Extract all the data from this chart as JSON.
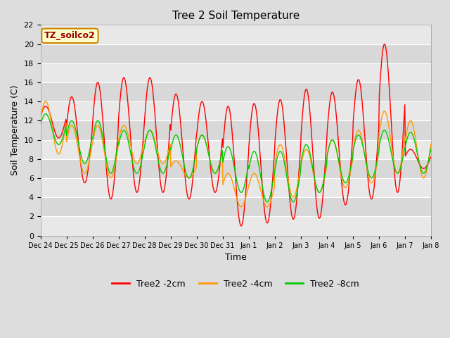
{
  "title": "Tree 2 Soil Temperature",
  "xlabel": "Time",
  "ylabel": "Soil Temperature (C)",
  "ylim": [
    0,
    22
  ],
  "yticks": [
    0,
    2,
    4,
    6,
    8,
    10,
    12,
    14,
    16,
    18,
    20,
    22
  ],
  "annotation_text": "TZ_soilco2",
  "annotation_bg": "#ffffcc",
  "annotation_border": "#cc8800",
  "annotation_text_color": "#990000",
  "line_colors": {
    "2cm": "#ff0000",
    "4cm": "#ff9900",
    "8cm": "#00cc00"
  },
  "legend_labels": [
    "Tree2 -2cm",
    "Tree2 -4cm",
    "Tree2 -8cm"
  ],
  "x_tick_labels": [
    "Dec 24",
    "Dec 25",
    "Dec 26",
    "Dec 27",
    "Dec 28",
    "Dec 29",
    "Dec 30",
    "Dec 31",
    "Jan 1",
    "Jan 2",
    "Jan 3",
    "Jan 4",
    "Jan 5",
    "Jan 6",
    "Jan 7",
    "Jan 8"
  ],
  "fig_bg": "#dddddd",
  "plot_bg": "#eeeeee",
  "band_colors": [
    "#e8e8e8",
    "#d8d8d8"
  ],
  "grid_color": "#ffffff",
  "peaks_2cm": [
    13.5,
    14.5,
    16.0,
    16.5,
    16.5,
    14.8,
    14.0,
    13.5,
    13.8,
    14.2,
    15.3,
    15.0,
    16.3,
    20.0,
    9.0
  ],
  "troughs_2cm": [
    10.2,
    5.5,
    3.8,
    4.5,
    4.5,
    3.8,
    4.5,
    1.0,
    1.3,
    1.7,
    1.8,
    3.2,
    3.8,
    4.5,
    7.0
  ],
  "peaks_4cm": [
    14.0,
    11.5,
    11.5,
    11.5,
    11.0,
    7.8,
    10.5,
    6.5,
    6.5,
    9.5,
    9.0,
    10.0,
    11.0,
    13.0,
    12.0
  ],
  "troughs_4cm": [
    8.5,
    6.5,
    6.0,
    7.5,
    7.5,
    6.0,
    6.5,
    3.0,
    3.0,
    4.0,
    4.5,
    5.0,
    5.5,
    6.5,
    6.0
  ],
  "peaks_8cm": [
    12.7,
    12.0,
    12.0,
    11.0,
    11.0,
    10.5,
    10.5,
    9.3,
    8.8,
    8.8,
    9.5,
    10.0,
    10.5,
    11.0,
    10.8
  ],
  "troughs_8cm": [
    9.5,
    7.5,
    6.5,
    6.5,
    6.5,
    6.0,
    6.5,
    4.5,
    3.5,
    3.5,
    4.5,
    5.5,
    6.0,
    6.5,
    6.5
  ],
  "n_days": 15,
  "pts_per_day": 48
}
